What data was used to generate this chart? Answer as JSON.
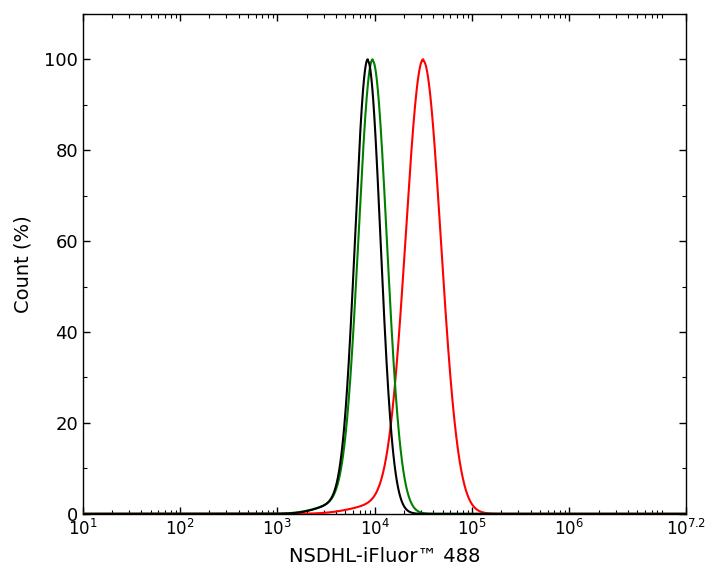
{
  "title": "",
  "xlabel": "NSDHL-iFluor™ 488",
  "ylabel": "Count (%)",
  "xlim_log": [
    1,
    7.2
  ],
  "ylim": [
    0,
    110
  ],
  "yticks": [
    0,
    20,
    40,
    60,
    80,
    100
  ],
  "black_peak_log": 3.93,
  "black_sigma_log": 0.13,
  "green_peak_log": 3.98,
  "green_sigma_log": 0.145,
  "red_peak_log": 4.5,
  "red_sigma_log": 0.18,
  "colors": [
    "black",
    "green",
    "red"
  ],
  "linewidth": 1.5,
  "background_color": "#ffffff"
}
